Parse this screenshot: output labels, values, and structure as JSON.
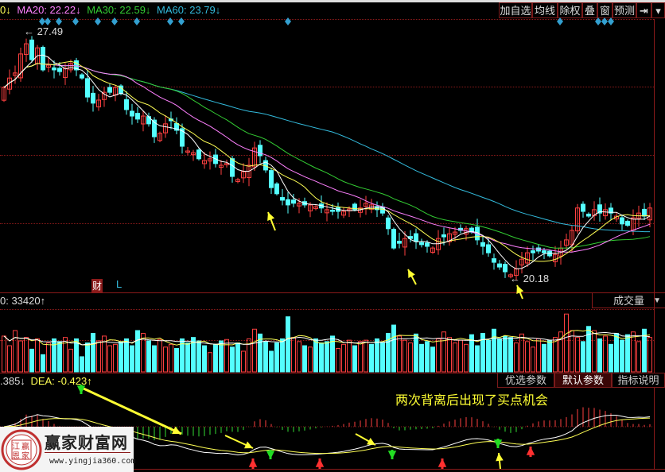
{
  "ma_legend": {
    "cut_prefix": "0↓",
    "ma20": "MA20: 22.22↓",
    "ma30": "MA30: 22.59↓",
    "ma60": "MA60: 23.79↓"
  },
  "toolbar": {
    "add_watchlist": "加自选",
    "moving_avg": "均线",
    "ex_rights": "除权",
    "overlay": "叠",
    "window": "窗",
    "forecast": "预测",
    "jump_end": "⇥",
    "menu": "▾"
  },
  "main_chart": {
    "high_label": "27.49",
    "low_label": "20.18",
    "finance_badge": "财",
    "l_badge": "L",
    "colors": {
      "up": "#ff4040",
      "down": "#54ffff",
      "ma5": "#ffffff",
      "ma10": "#ffff55",
      "ma20": "#ff80ff",
      "ma30": "#33cc33",
      "ma60": "#33bbdd"
    },
    "closes": [
      25.8,
      26.08,
      26.23,
      26.79,
      27.09,
      26.62,
      26.97,
      26.32,
      26.46,
      26.32,
      26.27,
      26.37,
      26.51,
      26.32,
      26.08,
      25.52,
      25.34,
      25.43,
      25.66,
      25.66,
      25.8,
      25.62,
      25.15,
      24.96,
      24.87,
      24.96,
      24.73,
      24.35,
      24.45,
      24.73,
      24.82,
      24.54,
      24.07,
      23.93,
      23.88,
      23.7,
      23.65,
      23.7,
      23.56,
      23.51,
      23.56,
      23.18,
      23.09,
      23.32,
      23.51,
      24.02,
      23.79,
      23.37,
      22.85,
      22.67,
      22.48,
      22.34,
      22.39,
      22.39,
      22.34,
      22.34,
      22.29,
      22.25,
      22.2,
      22.15,
      22.15,
      22.15,
      22.22,
      22.2,
      22.25,
      22.39,
      22.34,
      22.2,
      22.1,
      21.64,
      21.07,
      21.21,
      21.35,
      21.35,
      21.26,
      21.17,
      21.12,
      21.07,
      21.35,
      21.4,
      21.49,
      21.54,
      21.59,
      21.64,
      21.54,
      21.31,
      21.12,
      20.93,
      20.65,
      20.51,
      20.37,
      20.28,
      20.46,
      20.74,
      20.93,
      20.93,
      20.98,
      20.93,
      20.84,
      20.88,
      21.07,
      21.31,
      21.59,
      22.25,
      22.15,
      22.01,
      22.2,
      22.1,
      22.2,
      22.1,
      22.01,
      21.78,
      21.74,
      21.96,
      22.1,
      22.01,
      22.25
    ]
  },
  "volume": {
    "label": "0: 33420↑",
    "indicator_select": "成交量",
    "values": [
      52,
      38,
      60,
      45,
      50,
      33,
      48,
      25,
      42,
      48,
      44,
      50,
      33,
      48,
      22,
      42,
      56,
      45,
      52,
      38,
      40,
      44,
      48,
      38,
      60,
      56,
      45,
      38,
      47,
      36,
      40,
      34,
      48,
      42,
      50,
      45,
      38,
      28,
      40,
      45,
      47,
      36,
      42,
      30,
      48,
      62,
      55,
      44,
      30,
      42,
      48,
      80,
      50,
      44,
      38,
      36,
      48,
      42,
      44,
      52,
      34,
      40,
      46,
      38,
      44,
      46,
      40,
      48,
      42,
      56,
      68,
      52,
      46,
      42,
      55,
      40,
      44,
      36,
      48,
      58,
      50,
      42,
      46,
      40,
      54,
      38,
      56,
      46,
      62,
      48,
      52,
      50,
      42,
      55,
      44,
      36,
      48,
      40,
      46,
      50,
      58,
      84,
      60,
      50,
      44,
      66,
      60,
      48,
      52,
      40,
      56,
      46,
      54,
      58,
      44,
      62,
      50
    ]
  },
  "macd": {
    "dif_label": ".385↓",
    "dea_label": "DEA: -0.423↑",
    "buttons": [
      "优选参数",
      "默认参数",
      "指标说明"
    ],
    "active_button": "默认参数"
  },
  "annotation": "两次背离后出现了买点机会",
  "watermark": {
    "logo_chars": [
      "江",
      "赢",
      "恩",
      "家"
    ],
    "title": "赢家财富网",
    "url": "www.yingjia360.com"
  }
}
